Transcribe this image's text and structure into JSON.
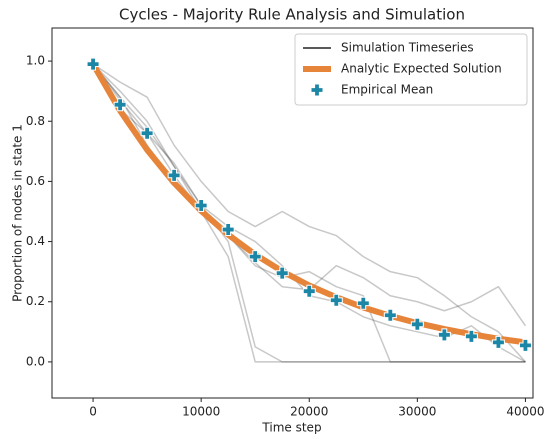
{
  "chart_data": {
    "type": "line",
    "title": "Cycles - Majority Rule Analysis and Simulation",
    "x_label": "Time step",
    "y_label": "Proportion of nodes in state 1",
    "x": [
      0,
      2500,
      5000,
      7500,
      10000,
      12500,
      15000,
      17500,
      20000,
      22500,
      25000,
      27500,
      30000,
      32500,
      35000,
      37500,
      40000
    ],
    "xlim": [
      -3800,
      40700
    ],
    "ylim": [
      -0.12,
      1.11
    ],
    "xticks": [
      0,
      10000,
      20000,
      30000,
      40000
    ],
    "yticks": [
      {
        "value": 0,
        "label": "0.0"
      },
      0.2,
      0.4,
      0.6,
      0.8,
      {
        "value": 1,
        "label": "1.0"
      }
    ],
    "legend": "upper right",
    "series": [
      {
        "name": "Simulation Timeseries",
        "color": "#222222",
        "alpha": 0.25,
        "width": 1.5,
        "values": [
          0.99,
          0.87,
          0.76,
          0.62,
          0.5,
          0.35,
          0,
          0,
          0,
          0,
          0,
          0,
          0,
          0,
          0,
          0,
          0
        ]
      },
      {
        "color": "#222222",
        "alpha": 0.25,
        "width": 1.5,
        "values": [
          0.99,
          0.9,
          0.8,
          0.65,
          0.52,
          0.4,
          0.05,
          0,
          0,
          0,
          0,
          0,
          0,
          0,
          0,
          0,
          0
        ]
      },
      {
        "color": "#222222",
        "alpha": 0.25,
        "width": 1.5,
        "values": [
          0.99,
          0.93,
          0.88,
          0.72,
          0.6,
          0.5,
          0.45,
          0.5,
          0.45,
          0.42,
          0.35,
          0.3,
          0.28,
          0.22,
          0.15,
          0.1,
          0
        ]
      },
      {
        "color": "#222222",
        "alpha": 0.25,
        "width": 1.5,
        "values": [
          0.99,
          0.88,
          0.78,
          0.65,
          0.5,
          0.42,
          0.32,
          0.28,
          0.3,
          0.25,
          0.22,
          0,
          0,
          0,
          0,
          0,
          0
        ]
      },
      {
        "color": "#222222",
        "alpha": 0.25,
        "width": 1.5,
        "values": [
          0.99,
          0.88,
          0.72,
          0.6,
          0.5,
          0.42,
          0.33,
          0.25,
          0.24,
          0.32,
          0.28,
          0.22,
          0.2,
          0.17,
          0.2,
          0.25,
          0.12
        ]
      },
      {
        "color": "#222222",
        "alpha": 0.25,
        "width": 1.5,
        "values": [
          0.99,
          0.84,
          0.76,
          0.66,
          0.52,
          0.45,
          0.4,
          0.32,
          0.22,
          0.2,
          0.15,
          0.12,
          0.1,
          0.08,
          0.12,
          0.05,
          0
        ]
      },
      {
        "name": "Analytic Expected Solution",
        "color": "#e6843a",
        "alpha": 1,
        "width": 6,
        "values": [
          0.99,
          0.835,
          0.705,
          0.595,
          0.502,
          0.423,
          0.357,
          0.301,
          0.254,
          0.215,
          0.181,
          0.153,
          0.129,
          0.109,
          0.092,
          0.077,
          0.065
        ]
      },
      {
        "name": "Empirical Mean",
        "color": "#1b86a6",
        "marker": "plus",
        "values": [
          0.99,
          0.855,
          0.76,
          0.62,
          0.52,
          0.44,
          0.35,
          0.295,
          0.235,
          0.205,
          0.195,
          0.155,
          0.125,
          0.09,
          0.085,
          0.065,
          0.055
        ]
      }
    ]
  }
}
